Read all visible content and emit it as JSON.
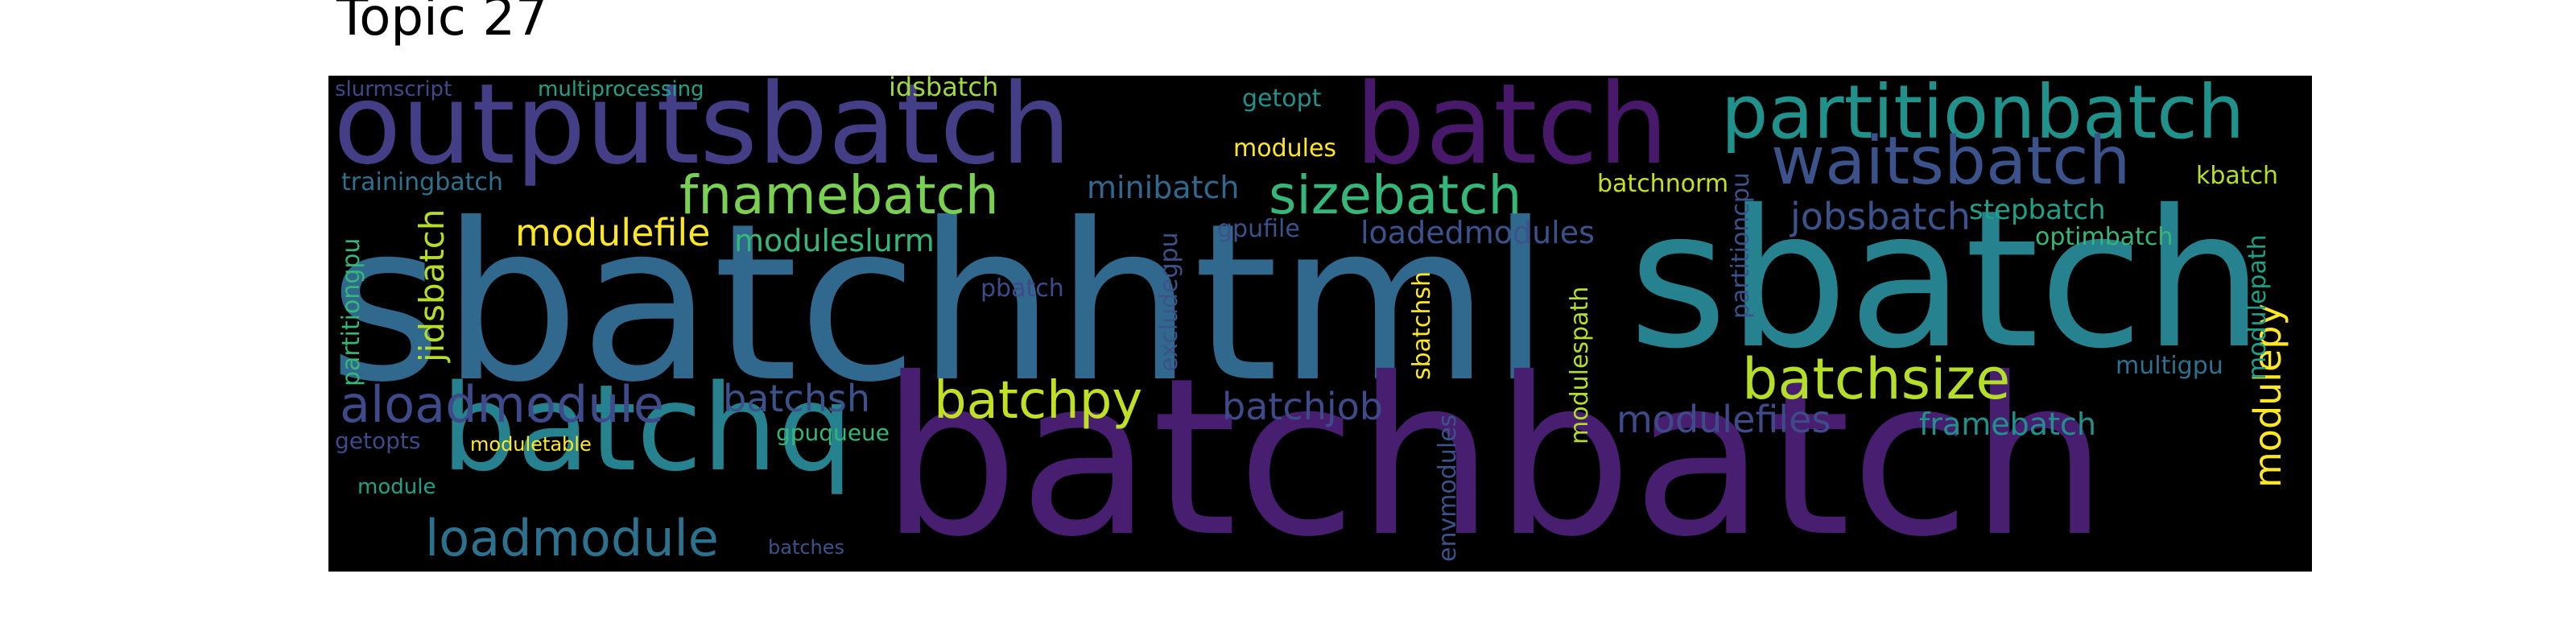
{
  "title": "Topic 27",
  "palette": {
    "background": "#000000",
    "dark_purple": "#481f70",
    "indigo": "#433e85",
    "blue_indigo": "#3b528b",
    "steel_blue": "#31688e",
    "teal_blue": "#2c728e",
    "teal": "#26828e",
    "sea_green": "#21918c",
    "green": "#1fa187",
    "bright_green": "#35b779",
    "lime": "#6ece58",
    "yellow_green": "#b5de2b",
    "yellow": "#fde725"
  },
  "words": [
    {
      "text": "sbatchhtml",
      "color": "#31688e"
    },
    {
      "text": "batchbatch",
      "color": "#481f70"
    },
    {
      "text": "sbatch",
      "color": "#26828e"
    },
    {
      "text": "outputsbatch",
      "color": "#433e85"
    },
    {
      "text": "batch",
      "color": "#48186a"
    },
    {
      "text": "batchq",
      "color": "#26828e"
    },
    {
      "text": "partitionbatch",
      "color": "#21918c"
    },
    {
      "text": "waitsbatch",
      "color": "#3b528b"
    },
    {
      "text": "fnamebatch",
      "color": "#7ad151"
    },
    {
      "text": "sizebatch",
      "color": "#35b779"
    },
    {
      "text": "batchsize",
      "color": "#b5de2b"
    },
    {
      "text": "batchpy",
      "color": "#c0df25"
    },
    {
      "text": "aloadmodule",
      "color": "#3e4a89"
    },
    {
      "text": "loadmodule",
      "color": "#2c728e"
    },
    {
      "text": "modulefile",
      "color": "#fde725"
    },
    {
      "text": "batchsh",
      "color": "#3b528b"
    },
    {
      "text": "batchjob",
      "color": "#3e4a89"
    },
    {
      "text": "modulefiles",
      "color": "#3e4a89"
    },
    {
      "text": "jobsbatch",
      "color": "#3b528b"
    },
    {
      "text": "framebatch",
      "color": "#21918c"
    },
    {
      "text": "moduleslurm",
      "color": "#35b779"
    },
    {
      "text": "minibatch",
      "color": "#31688e"
    },
    {
      "text": "loadedmodules",
      "color": "#3b528b"
    },
    {
      "text": "stepbatch",
      "color": "#1fa187"
    },
    {
      "text": "jidsbatch",
      "color": "#b5de2b"
    },
    {
      "text": "modulepy",
      "color": "#fde725"
    },
    {
      "text": "trainingbatch",
      "color": "#2c728e"
    },
    {
      "text": "idsbatch",
      "color": "#a0da39"
    },
    {
      "text": "multiprocessing",
      "color": "#1fa187"
    },
    {
      "text": "slurmscript",
      "color": "#3e4a89"
    },
    {
      "text": "getopt",
      "color": "#21918c"
    },
    {
      "text": "modules",
      "color": "#fde725"
    },
    {
      "text": "batchnorm",
      "color": "#c8e020"
    },
    {
      "text": "kbatch",
      "color": "#b5de2b"
    },
    {
      "text": "optimbatch",
      "color": "#35b779"
    },
    {
      "text": "gpufile",
      "color": "#3b528b"
    },
    {
      "text": "pbatch",
      "color": "#3e4a89"
    },
    {
      "text": "excludegpu",
      "color": "#3b528b"
    },
    {
      "text": "sbatchsh",
      "color": "#fde725"
    },
    {
      "text": "modulespath",
      "color": "#b5de2b"
    },
    {
      "text": "partitioncpu",
      "color": "#3b528b"
    },
    {
      "text": "modulepath",
      "color": "#1fa187"
    },
    {
      "text": "multigpu",
      "color": "#2c728e"
    },
    {
      "text": "partitiongpu",
      "color": "#35b779"
    },
    {
      "text": "getopts",
      "color": "#3e4a89"
    },
    {
      "text": "moduletable",
      "color": "#fde725"
    },
    {
      "text": "gpuqueue",
      "color": "#35b779"
    },
    {
      "text": "module",
      "color": "#1fa187"
    },
    {
      "text": "batches",
      "color": "#3b528b"
    },
    {
      "text": "envmodules",
      "color": "#3b528b"
    }
  ]
}
